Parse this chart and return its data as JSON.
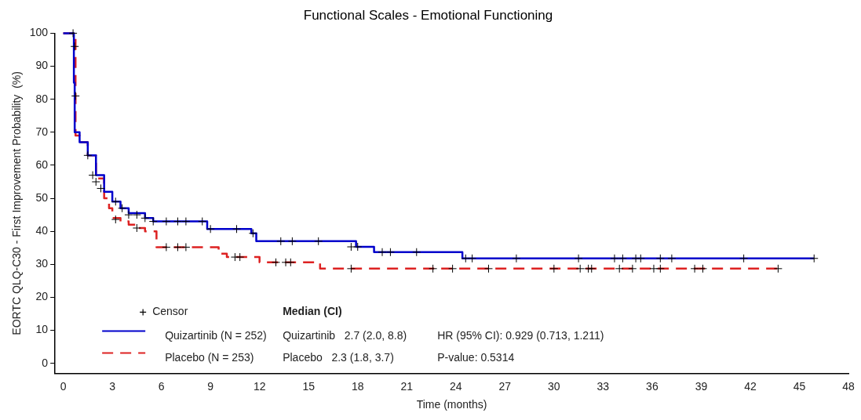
{
  "chart_data": {
    "type": "step",
    "title": "Functional Scales - Emotional Functioning",
    "xlabel": "Time (months)",
    "ylabel": "EORTC QLQ-C30 - First Improvement Probability  (%)",
    "xlim": [
      -0.5,
      48
    ],
    "xticks": [
      0,
      3,
      6,
      9,
      12,
      15,
      18,
      21,
      24,
      27,
      30,
      33,
      36,
      39,
      42,
      45,
      48
    ],
    "ylim": [
      -3,
      100
    ],
    "yticks": [
      0,
      10,
      20,
      30,
      40,
      50,
      60,
      70,
      80,
      90,
      100
    ],
    "grid": false,
    "legend": "bottom left",
    "series": [
      {
        "name": "Censor",
        "type": "scatter",
        "color": "#000000",
        "marker": "cross",
        "x": [
          0.6,
          0.7,
          0.75,
          1.5,
          1.8,
          2.0,
          2.3,
          3.2,
          3.6,
          4.0,
          4.5,
          5.0,
          5.5,
          6.3,
          7.0,
          7.5,
          8.5,
          9.0,
          10.6,
          11.6,
          13.3,
          14.0,
          15.6,
          17.6,
          18.0,
          19.5,
          20.0,
          21.6,
          24.6,
          25.0,
          27.7,
          31.5,
          33.7,
          34.2,
          35.0,
          35.3,
          36.5,
          37.2,
          41.6,
          45.9,
          3.2,
          4.5,
          6.3,
          7.0,
          7.5,
          10.5,
          10.8,
          13.0,
          13.6,
          13.9,
          17.6,
          22.6,
          23.8,
          26.0,
          30.0,
          31.6,
          32.1,
          32.3,
          34.0,
          34.8,
          36.1,
          36.5,
          38.6,
          39.1,
          43.7
        ],
        "values": [
          100,
          96,
          81,
          63,
          57,
          55,
          53,
          49,
          47,
          45,
          45,
          44,
          43,
          43,
          43,
          43,
          43,
          40.7,
          40.7,
          39.4,
          37,
          37,
          37,
          35.3,
          35.3,
          33.7,
          33.7,
          33.7,
          31.8,
          31.8,
          31.8,
          31.8,
          31.8,
          31.8,
          31.8,
          31.8,
          31.8,
          31.8,
          31.8,
          31.8,
          43.6,
          41,
          35.2,
          35.2,
          35.2,
          32.2,
          32.2,
          30.6,
          30.6,
          30.6,
          28.7,
          28.7,
          28.7,
          28.7,
          28.7,
          28.7,
          28.7,
          28.7,
          28.7,
          28.7,
          28.7,
          28.7,
          28.7,
          28.7,
          28.7
        ]
      },
      {
        "name": "Quizartinib (N = 252)",
        "color": "#0000cc",
        "line_style": "solid",
        "x": [
          0,
          0.6,
          0.65,
          0.7,
          1.0,
          1.5,
          2.0,
          2.5,
          3.0,
          3.5,
          4.0,
          5.0,
          5.5,
          8.8,
          11.5,
          11.8,
          17.9,
          19.0,
          24.4,
          45.9
        ],
        "values": [
          100,
          100,
          85,
          70,
          67,
          63,
          57,
          52,
          49,
          47,
          45.5,
          44,
          43,
          40.7,
          39.4,
          37,
          35.3,
          33.7,
          31.8,
          31.8
        ]
      },
      {
        "name": "Placebo (N = 253)",
        "color": "#dd2222",
        "line_style": "dashed",
        "x": [
          0,
          0.7,
          0.75,
          1.0,
          1.5,
          2.0,
          2.5,
          2.8,
          3.0,
          3.5,
          4.0,
          4.5,
          5.0,
          5.7,
          9.5,
          10.0,
          12.0,
          15.7,
          43.7
        ],
        "values": [
          100,
          100,
          69,
          67,
          63,
          56,
          50,
          47,
          44,
          43,
          42,
          41,
          40,
          35.2,
          33.2,
          32.2,
          30.6,
          28.7,
          28.7
        ]
      }
    ],
    "annotations": [
      "Median (CI)",
      "Quizartinib   2.7 (2.0, 8.8)",
      "Placebo   2.3 (1.8, 3.7)",
      "HR (95% CI): 0.929 (0.713, 1.211)",
      "P-value: 0.5314"
    ]
  }
}
